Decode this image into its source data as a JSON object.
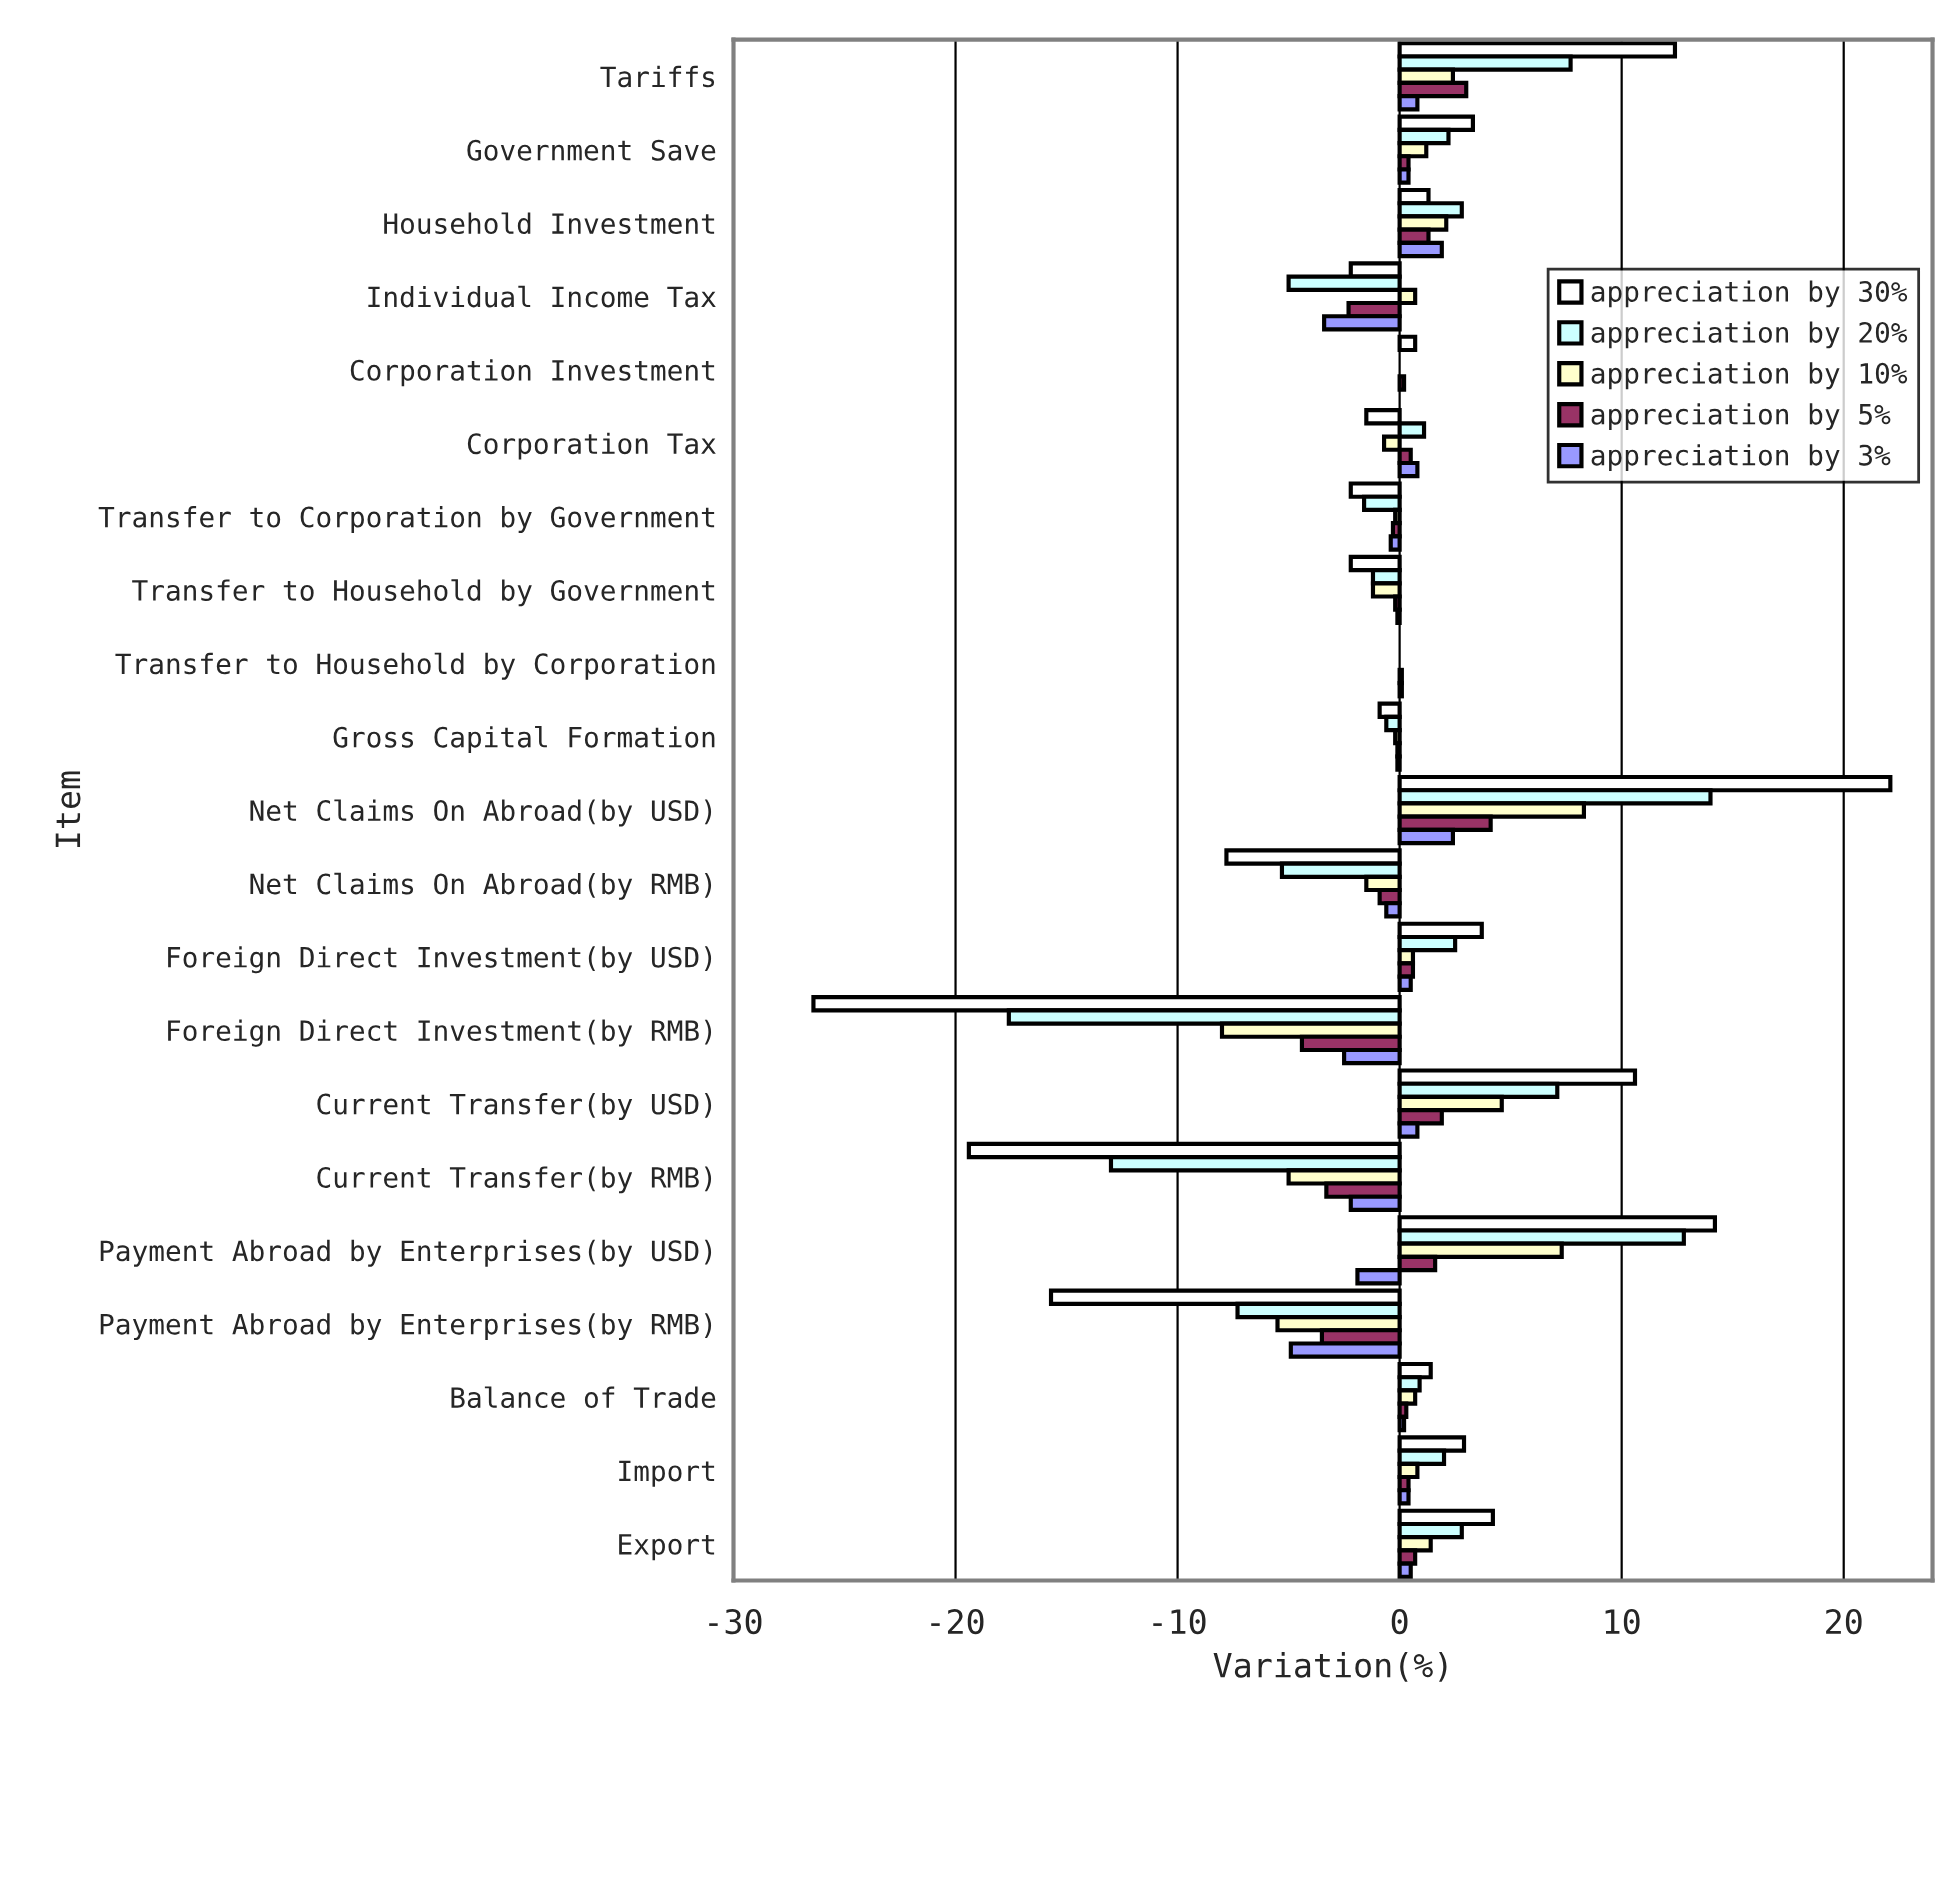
{
  "chart_data": {
    "type": "bar",
    "orientation": "horizontal",
    "xlabel": "Variation(%)",
    "ylabel": "Item",
    "categories": [
      "Tariffs",
      "Government Save",
      "Household Investment",
      "Individual Income Tax",
      "Corporation Investment",
      "Corporation Tax",
      "Transfer to Corporation by Government",
      "Transfer to Household by Government",
      "Transfer to Household by Corporation",
      "Gross Capital Formation",
      "Net Claims On Abroad(by USD)",
      "Net Claims On Abroad(by RMB)",
      "Foreign Direct Investment(by USD)",
      "Foreign Direct Investment(by RMB)",
      "Current Transfer(by USD)",
      "Current Transfer(by RMB)",
      "Payment Abroad by Enterprises(by USD)",
      "Payment Abroad by Enterprises(by RMB)",
      "Balance of Trade",
      "Import",
      "Export"
    ],
    "series": [
      {
        "name": "appreciation by 30%",
        "color": "#ffffff",
        "values": [
          12.4,
          3.3,
          1.3,
          -2.2,
          0.7,
          -1.5,
          -2.2,
          -2.2,
          null,
          -0.9,
          22.1,
          -7.8,
          3.7,
          -26.4,
          10.6,
          -19.4,
          14.2,
          -15.7,
          1.4,
          2.9,
          4.2
        ]
      },
      {
        "name": "appreciation by 20%",
        "color": "#ccffff",
        "values": [
          7.7,
          2.2,
          2.8,
          -5.0,
          null,
          1.1,
          -1.6,
          -1.2,
          null,
          -0.6,
          14.0,
          -5.3,
          2.5,
          -17.6,
          7.1,
          -13.0,
          12.8,
          -7.3,
          0.9,
          2.0,
          2.8
        ]
      },
      {
        "name": "appreciation by 10%",
        "color": "#ffffcc",
        "values": [
          2.4,
          1.2,
          2.1,
          0.7,
          null,
          -0.7,
          -0.2,
          -1.2,
          null,
          -0.2,
          8.3,
          -1.5,
          0.6,
          -8.0,
          4.6,
          -5.0,
          7.3,
          -5.5,
          0.7,
          0.8,
          1.4
        ]
      },
      {
        "name": "appreciation by 5%",
        "color": "#993366",
        "values": [
          3.0,
          0.4,
          1.3,
          -2.3,
          0.2,
          0.5,
          -0.3,
          -0.2,
          0.1,
          -0.1,
          4.1,
          -0.9,
          0.6,
          -4.4,
          1.9,
          -3.3,
          1.6,
          -3.5,
          0.3,
          0.4,
          0.7
        ]
      },
      {
        "name": "appreciation by 3%",
        "color": "#9999ff",
        "values": [
          0.8,
          0.4,
          1.9,
          -3.4,
          null,
          0.8,
          -0.4,
          -0.1,
          0.1,
          -0.1,
          2.4,
          -0.6,
          0.5,
          -2.5,
          0.8,
          -2.2,
          -1.9,
          -4.9,
          0.2,
          0.4,
          0.5
        ]
      }
    ],
    "xlim": [
      -30,
      24
    ],
    "xticks": [
      -30,
      -20,
      -10,
      0,
      10,
      20
    ],
    "grid": "x",
    "legend": "top right"
  }
}
